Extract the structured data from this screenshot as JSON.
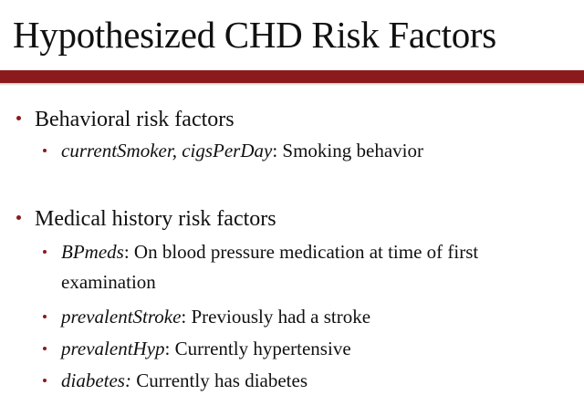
{
  "slide": {
    "title": "Hypothesized CHD Risk Factors",
    "accent_color": "#8b1a1d",
    "sections": [
      {
        "heading": "Behavioral risk factors",
        "items": [
          {
            "term": "currentSmoker, cigsPerDay",
            "sep": ": ",
            "desc": "Smoking behavior"
          }
        ]
      },
      {
        "heading": "Medical history risk factors",
        "items": [
          {
            "term": "BPmeds",
            "sep": ": ",
            "desc": "On blood pressure medication at time of  first",
            "desc_cont": "examination"
          },
          {
            "term": "prevalentStroke",
            "sep": ": ",
            "desc": "Previously had a stroke"
          },
          {
            "term": "prevalentHyp",
            "sep": ": ",
            "desc": "Currently hypertensive"
          },
          {
            "term": "diabetes:",
            "sep": " ",
            "desc": "Currently has diabetes"
          }
        ]
      }
    ]
  }
}
